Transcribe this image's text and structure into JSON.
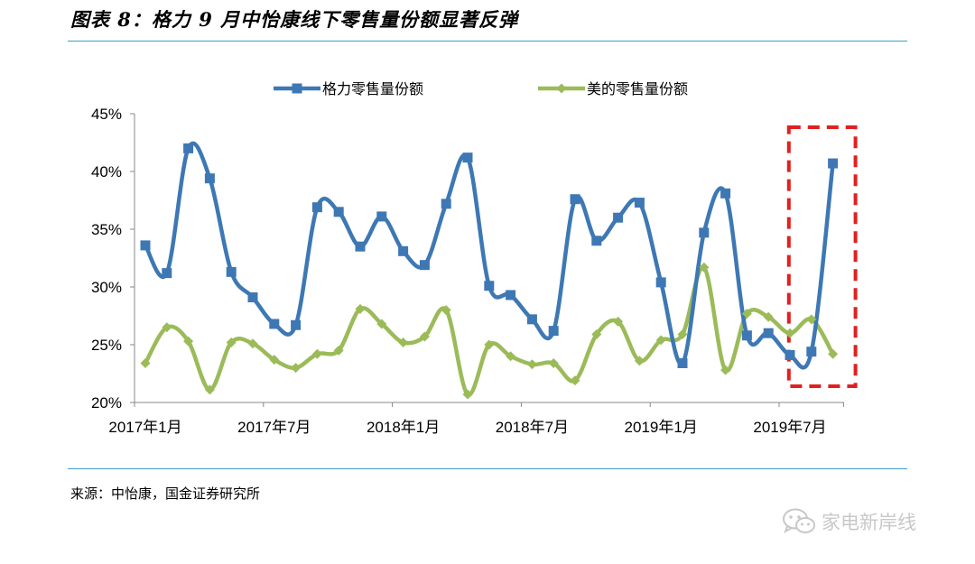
{
  "figure": {
    "title": "图表 8：格力 9 月中怡康线下零售量份额显著反弹",
    "source": "来源：中怡康，国金证券研究所",
    "watermark_text": "家电新岸线",
    "watermark_icon": "wechat-icon"
  },
  "chart_data": {
    "type": "line",
    "title": "",
    "xlabel": "",
    "ylabel": "",
    "ylim": [
      0.2,
      0.45
    ],
    "yticks": [
      "20%",
      "25%",
      "30%",
      "35%",
      "40%",
      "45%"
    ],
    "x_tick_labels": [
      "2017年1月",
      "2017年7月",
      "2018年1月",
      "2018年7月",
      "2019年1月",
      "2019年7月"
    ],
    "x": [
      "2017-01",
      "2017-02",
      "2017-03",
      "2017-04",
      "2017-05",
      "2017-06",
      "2017-07",
      "2017-08",
      "2017-09",
      "2017-10",
      "2017-11",
      "2017-12",
      "2018-01",
      "2018-02",
      "2018-03",
      "2018-04",
      "2018-05",
      "2018-06",
      "2018-07",
      "2018-08",
      "2018-09",
      "2018-10",
      "2018-11",
      "2018-12",
      "2019-01",
      "2019-02",
      "2019-03",
      "2019-04",
      "2019-05",
      "2019-06",
      "2019-07",
      "2019-08",
      "2019-09"
    ],
    "legend_position": "top-center",
    "grid": false,
    "series": [
      {
        "name": "格力零售量份额",
        "color": "#3e78b4",
        "marker": "square",
        "values": [
          0.336,
          0.312,
          0.42,
          0.394,
          0.313,
          0.291,
          0.268,
          0.267,
          0.369,
          0.365,
          0.335,
          0.361,
          0.331,
          0.319,
          0.372,
          0.412,
          0.301,
          0.293,
          0.272,
          0.262,
          0.376,
          0.34,
          0.36,
          0.373,
          0.304,
          0.234,
          0.347,
          0.381,
          0.258,
          0.26,
          0.241,
          0.244,
          0.407
        ]
      },
      {
        "name": "美的零售量份额",
        "color": "#9bbb59",
        "marker": "diamond",
        "values": [
          0.234,
          0.265,
          0.253,
          0.211,
          0.252,
          0.251,
          0.237,
          0.23,
          0.242,
          0.245,
          0.281,
          0.268,
          0.252,
          0.257,
          0.28,
          0.207,
          0.25,
          0.24,
          0.233,
          0.234,
          0.219,
          0.259,
          0.27,
          0.236,
          0.254,
          0.259,
          0.317,
          0.228,
          0.277,
          0.274,
          0.26,
          0.272,
          0.242
        ]
      }
    ],
    "highlight": {
      "from": "2019-08",
      "to": "2019-09",
      "color": "#e02020",
      "style": "dashed"
    }
  }
}
